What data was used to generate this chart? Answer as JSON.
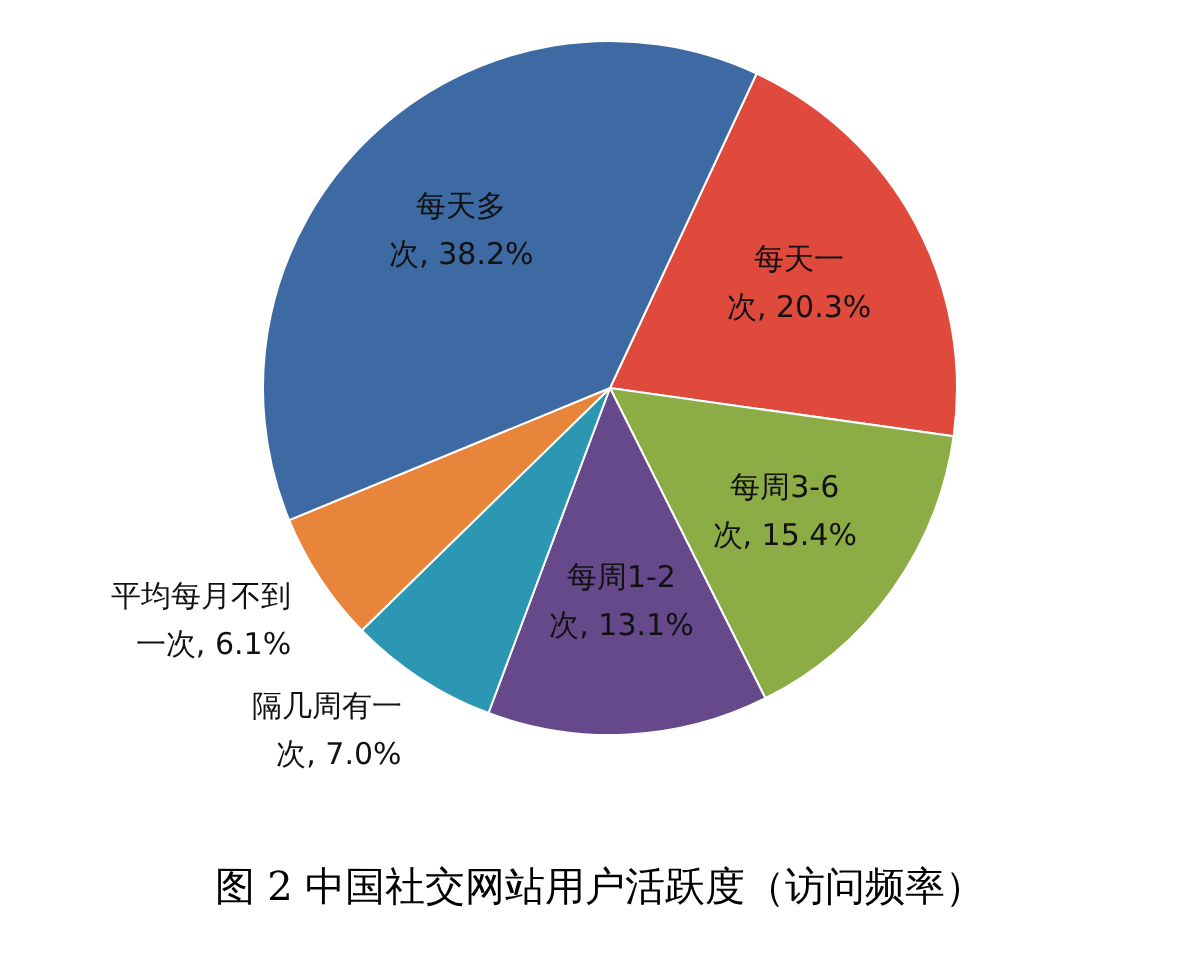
{
  "chart_data": {
    "type": "pie",
    "title": "图 2  中国社交网站用户活跃度（访问频率）",
    "categories": [
      "每天一次",
      "每周3-6次",
      "每周1-2次",
      "隔几周有一次",
      "平均每月不到一次",
      "每天多次"
    ],
    "values": [
      20.3,
      15.4,
      13.1,
      7.0,
      6.1,
      38.2
    ],
    "value_labels": [
      "20.3%",
      "15.4%",
      "13.1%",
      "7.0%",
      "6.1%",
      "38.2%"
    ],
    "colors": [
      "#e04a3c",
      "#8cad45",
      "#65498a",
      "#2b97b3",
      "#e8853a",
      "#3d6aa2"
    ],
    "legend": false
  }
}
